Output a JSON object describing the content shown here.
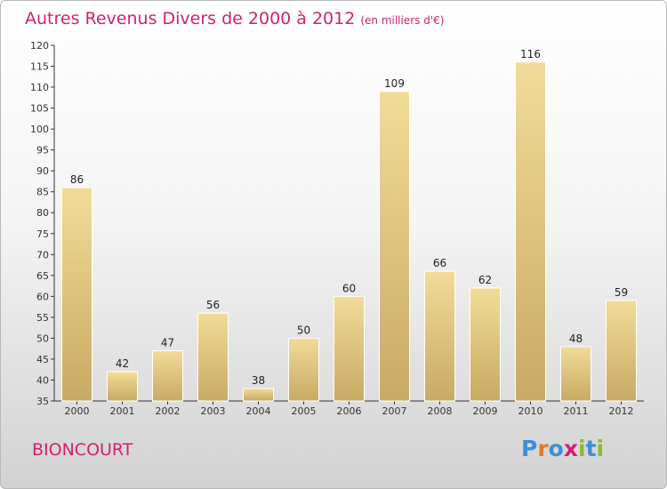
{
  "page": {
    "place": "BIONCOURT",
    "logo": "Proxiti"
  },
  "chart_data": {
    "type": "bar",
    "title": "Autres Revenus Divers de 2000 à 2012",
    "unit": "(en milliers d'€)",
    "xlabel": "",
    "ylabel": "",
    "categories": [
      "2000",
      "2001",
      "2002",
      "2003",
      "2004",
      "2005",
      "2006",
      "2007",
      "2008",
      "2009",
      "2010",
      "2011",
      "2012"
    ],
    "values": [
      86,
      42,
      47,
      56,
      38,
      50,
      60,
      109,
      66,
      62,
      116,
      48,
      59
    ],
    "ylim": [
      35,
      120
    ],
    "yticks": [
      35,
      40,
      45,
      50,
      55,
      60,
      65,
      70,
      75,
      80,
      85,
      90,
      95,
      100,
      105,
      110,
      115,
      120
    ],
    "grid": false,
    "colors": {
      "bar_light": "#f1dc97",
      "bar_dark": "#c8aa64",
      "title": "#d2216e"
    }
  }
}
